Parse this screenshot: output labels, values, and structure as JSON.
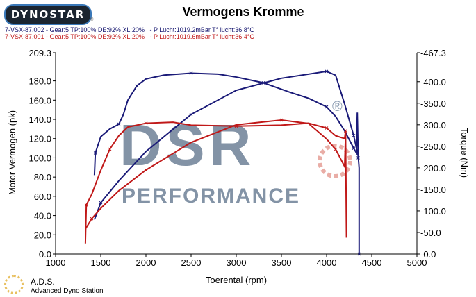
{
  "header": {
    "logo": "DYNOSTAR",
    "logo_sub": "®",
    "title": "Vermogens Kromme",
    "runs": [
      {
        "label": "7-VSX-87.002 - Gear:5 TP:100% DE:92% XL:20%   - P Lucht:1019.2mBar T° lucht:36.8°C",
        "color": "#14146e"
      },
      {
        "label": "7-VSX-87.001 - Gear:5 TP:100% DE:92% XL:20%   - P Lucht:1019.6mBar T° lucht:36.4°C",
        "color": "#c01818"
      }
    ]
  },
  "footer": {
    "ads": "A.D.S.",
    "ads_full": "Advanced Dyno Station"
  },
  "watermark": {
    "line1": "DSR",
    "reg": "®",
    "line2": "PERFORMANCE"
  },
  "chart_data": {
    "type": "line",
    "title": "Vermogens Kromme",
    "xlabel": "Toerental (rpm)",
    "ylabel": "Motor Vermogen (pk)",
    "y2label": "Torque (Nm)",
    "xlim": [
      1000,
      5000
    ],
    "ylim": [
      0,
      209.3
    ],
    "y2lim": [
      0,
      467.3
    ],
    "xticks": [
      "1000",
      "1500",
      "2000",
      "2500",
      "3000",
      "3500",
      "4000",
      "4500",
      "5000"
    ],
    "xtick_values": [
      1000,
      1500,
      2000,
      2500,
      3000,
      3500,
      4000,
      4500,
      5000
    ],
    "yticks": [
      "0.0",
      "20.0",
      "40.0",
      "60.0",
      "80.0",
      "100.0",
      "120.0",
      "140.0",
      "160.0",
      "180.0",
      "209.3"
    ],
    "ytick_values": [
      0,
      20,
      40,
      60,
      80,
      100,
      120,
      140,
      160,
      180,
      209.3
    ],
    "y2ticks": [
      "-0.0",
      "-50.0",
      "-100.0",
      "-150.0",
      "-200.0",
      "-250.0",
      "-300.0",
      "-350.0",
      "-400.0",
      "-467.3"
    ],
    "y2tick_values": [
      0,
      50,
      100,
      150,
      200,
      250,
      300,
      350,
      400,
      467.3
    ],
    "series": [
      {
        "name": "7-VSX-87.002 power",
        "axis": "left",
        "color": "#1a1a78",
        "x": [
          1430,
          1440,
          1500,
          1600,
          1700,
          1750,
          1800,
          1900,
          2000,
          2200,
          2500,
          2800,
          3000,
          3300,
          3600,
          3800,
          4000,
          4100,
          4200,
          4300,
          4330,
          4340,
          4350
        ],
        "y": [
          82,
          105,
          122,
          130,
          135,
          145,
          160,
          175,
          182,
          186,
          188,
          187,
          184,
          178,
          168,
          162,
          153,
          143,
          128,
          110,
          105,
          147,
          100
        ]
      },
      {
        "name": "7-VSX-87.002 torque",
        "axis": "right",
        "color": "#1a1a78",
        "x": [
          1430,
          1500,
          1700,
          2000,
          2500,
          3000,
          3500,
          4000,
          4100,
          4200,
          4300,
          4350,
          4360,
          4360
        ],
        "y": [
          80,
          119,
          170,
          238,
          324,
          380,
          408,
          424,
          415,
          348,
          275,
          227,
          200,
          0
        ]
      },
      {
        "name": "7-VSX-87.001 power",
        "axis": "left",
        "color": "#c01818",
        "x": [
          1330,
          1340,
          1400,
          1500,
          1600,
          1700,
          1800,
          2000,
          2300,
          2500,
          3000,
          3500,
          3800,
          4000,
          4100,
          4200,
          4210,
          4220
        ],
        "y": [
          11,
          51,
          62,
          87,
          109,
          123,
          132,
          136,
          137,
          134,
          133,
          134,
          136,
          131,
          123,
          120,
          128,
          17
        ]
      },
      {
        "name": "7-VSX-87.001 torque",
        "axis": "right",
        "color": "#c01818",
        "x": [
          1330,
          1400,
          1500,
          1700,
          2000,
          2500,
          3000,
          3500,
          3800,
          4000,
          4100,
          4200,
          4210
        ],
        "y": [
          58,
          82,
          106,
          147,
          195,
          259,
          300,
          311,
          303,
          267,
          243,
          203,
          275
        ]
      }
    ]
  }
}
